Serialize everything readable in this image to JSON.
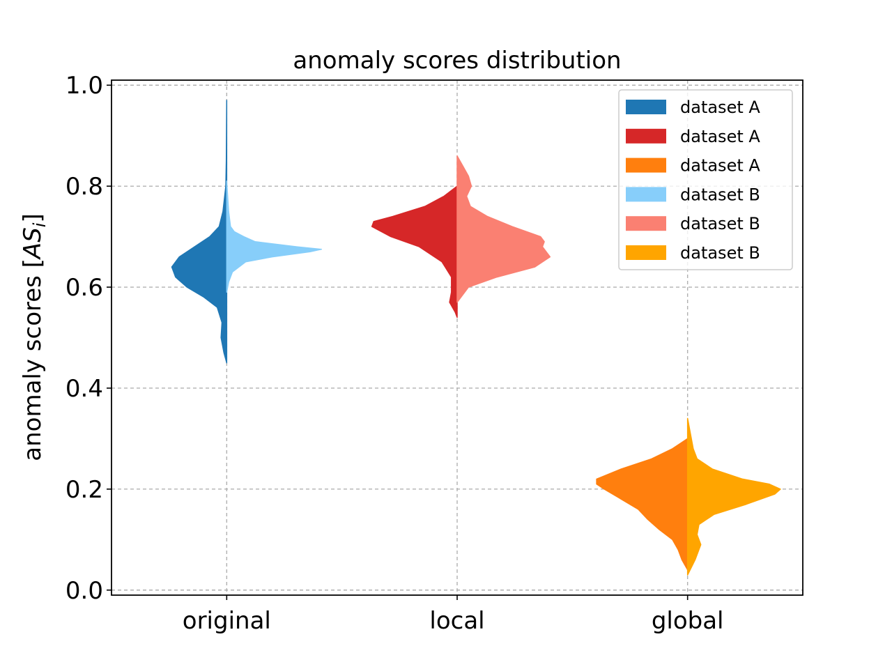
{
  "chart_data": {
    "type": "violin",
    "title": "anomaly scores distribution",
    "xlabel": "",
    "ylabel": "anomaly scores [AS_i]",
    "ylabel_display": {
      "prefix": "anomaly scores [",
      "symbol": "AS",
      "subscript": "i",
      "suffix": "]"
    },
    "categories": [
      "original",
      "local",
      "global"
    ],
    "ylim": [
      -0.01,
      1.01
    ],
    "yticks": [
      0.0,
      0.2,
      0.4,
      0.6,
      0.8,
      1.0
    ],
    "ytick_labels": [
      "0.0",
      "0.2",
      "0.4",
      "0.6",
      "0.8",
      "1.0"
    ],
    "grid": true,
    "legend_position": "top-right",
    "legend": [
      {
        "label": "dataset A",
        "color": "#1f77b4"
      },
      {
        "label": "dataset A",
        "color": "#d62728"
      },
      {
        "label": "dataset A",
        "color": "#ff7f0e"
      },
      {
        "label": "dataset B",
        "color": "#87cefa"
      },
      {
        "label": "dataset B",
        "color": "#fa8072"
      },
      {
        "label": "dataset B",
        "color": "#ffa500"
      }
    ],
    "violins": [
      {
        "category": "original",
        "side": "left",
        "dataset": "dataset A",
        "color": "#1f77b4",
        "y_min": 0.45,
        "y_max": 0.97,
        "profile": [
          [
            0.45,
            0.0
          ],
          [
            0.47,
            0.03
          ],
          [
            0.5,
            0.06
          ],
          [
            0.53,
            0.05
          ],
          [
            0.56,
            0.1
          ],
          [
            0.58,
            0.24
          ],
          [
            0.6,
            0.42
          ],
          [
            0.62,
            0.54
          ],
          [
            0.64,
            0.58
          ],
          [
            0.66,
            0.5
          ],
          [
            0.68,
            0.34
          ],
          [
            0.7,
            0.18
          ],
          [
            0.72,
            0.08
          ],
          [
            0.75,
            0.04
          ],
          [
            0.8,
            0.01
          ],
          [
            0.85,
            0.005
          ],
          [
            0.97,
            0.0
          ]
        ]
      },
      {
        "category": "original",
        "side": "right",
        "dataset": "dataset B",
        "color": "#87cefa",
        "y_min": 0.59,
        "y_max": 0.81,
        "profile": [
          [
            0.59,
            0.0
          ],
          [
            0.61,
            0.02
          ],
          [
            0.63,
            0.06
          ],
          [
            0.65,
            0.2
          ],
          [
            0.66,
            0.48
          ],
          [
            0.67,
            0.88
          ],
          [
            0.675,
            1.0
          ],
          [
            0.68,
            0.74
          ],
          [
            0.69,
            0.3
          ],
          [
            0.7,
            0.18
          ],
          [
            0.71,
            0.08
          ],
          [
            0.72,
            0.04
          ],
          [
            0.75,
            0.02
          ],
          [
            0.81,
            0.0
          ]
        ]
      },
      {
        "category": "local",
        "side": "left",
        "dataset": "dataset A",
        "color": "#d62728",
        "y_min": 0.54,
        "y_max": 0.8,
        "profile": [
          [
            0.54,
            0.0
          ],
          [
            0.55,
            0.02
          ],
          [
            0.57,
            0.08
          ],
          [
            0.59,
            0.06
          ],
          [
            0.62,
            0.06
          ],
          [
            0.65,
            0.16
          ],
          [
            0.68,
            0.4
          ],
          [
            0.7,
            0.7
          ],
          [
            0.72,
            0.9
          ],
          [
            0.73,
            0.88
          ],
          [
            0.74,
            0.68
          ],
          [
            0.76,
            0.34
          ],
          [
            0.78,
            0.14
          ],
          [
            0.8,
            0.0
          ]
        ]
      },
      {
        "category": "local",
        "side": "right",
        "dataset": "dataset B",
        "color": "#fa8072",
        "y_min": 0.57,
        "y_max": 0.86,
        "profile": [
          [
            0.57,
            0.0
          ],
          [
            0.6,
            0.12
          ],
          [
            0.62,
            0.42
          ],
          [
            0.64,
            0.82
          ],
          [
            0.66,
            0.98
          ],
          [
            0.68,
            0.9
          ],
          [
            0.69,
            0.92
          ],
          [
            0.7,
            0.88
          ],
          [
            0.72,
            0.58
          ],
          [
            0.74,
            0.32
          ],
          [
            0.76,
            0.14
          ],
          [
            0.78,
            0.1
          ],
          [
            0.8,
            0.15
          ],
          [
            0.82,
            0.12
          ],
          [
            0.84,
            0.06
          ],
          [
            0.86,
            0.0
          ]
        ]
      },
      {
        "category": "global",
        "side": "left",
        "dataset": "dataset A",
        "color": "#ff7f0e",
        "y_min": 0.04,
        "y_max": 0.3,
        "profile": [
          [
            0.04,
            0.0
          ],
          [
            0.06,
            0.06
          ],
          [
            0.08,
            0.1
          ],
          [
            0.1,
            0.16
          ],
          [
            0.12,
            0.3
          ],
          [
            0.14,
            0.42
          ],
          [
            0.16,
            0.52
          ],
          [
            0.18,
            0.7
          ],
          [
            0.2,
            0.88
          ],
          [
            0.21,
            0.96
          ],
          [
            0.22,
            0.96
          ],
          [
            0.24,
            0.7
          ],
          [
            0.26,
            0.38
          ],
          [
            0.28,
            0.16
          ],
          [
            0.3,
            0.0
          ]
        ]
      },
      {
        "category": "global",
        "side": "right",
        "dataset": "dataset B",
        "color": "#ffa500",
        "y_min": 0.03,
        "y_max": 0.34,
        "profile": [
          [
            0.03,
            0.0
          ],
          [
            0.06,
            0.08
          ],
          [
            0.09,
            0.14
          ],
          [
            0.11,
            0.1
          ],
          [
            0.13,
            0.12
          ],
          [
            0.15,
            0.28
          ],
          [
            0.17,
            0.62
          ],
          [
            0.19,
            0.92
          ],
          [
            0.2,
            0.98
          ],
          [
            0.21,
            0.86
          ],
          [
            0.22,
            0.58
          ],
          [
            0.24,
            0.26
          ],
          [
            0.26,
            0.1
          ],
          [
            0.28,
            0.06
          ],
          [
            0.3,
            0.04
          ],
          [
            0.34,
            0.0
          ]
        ]
      }
    ]
  }
}
